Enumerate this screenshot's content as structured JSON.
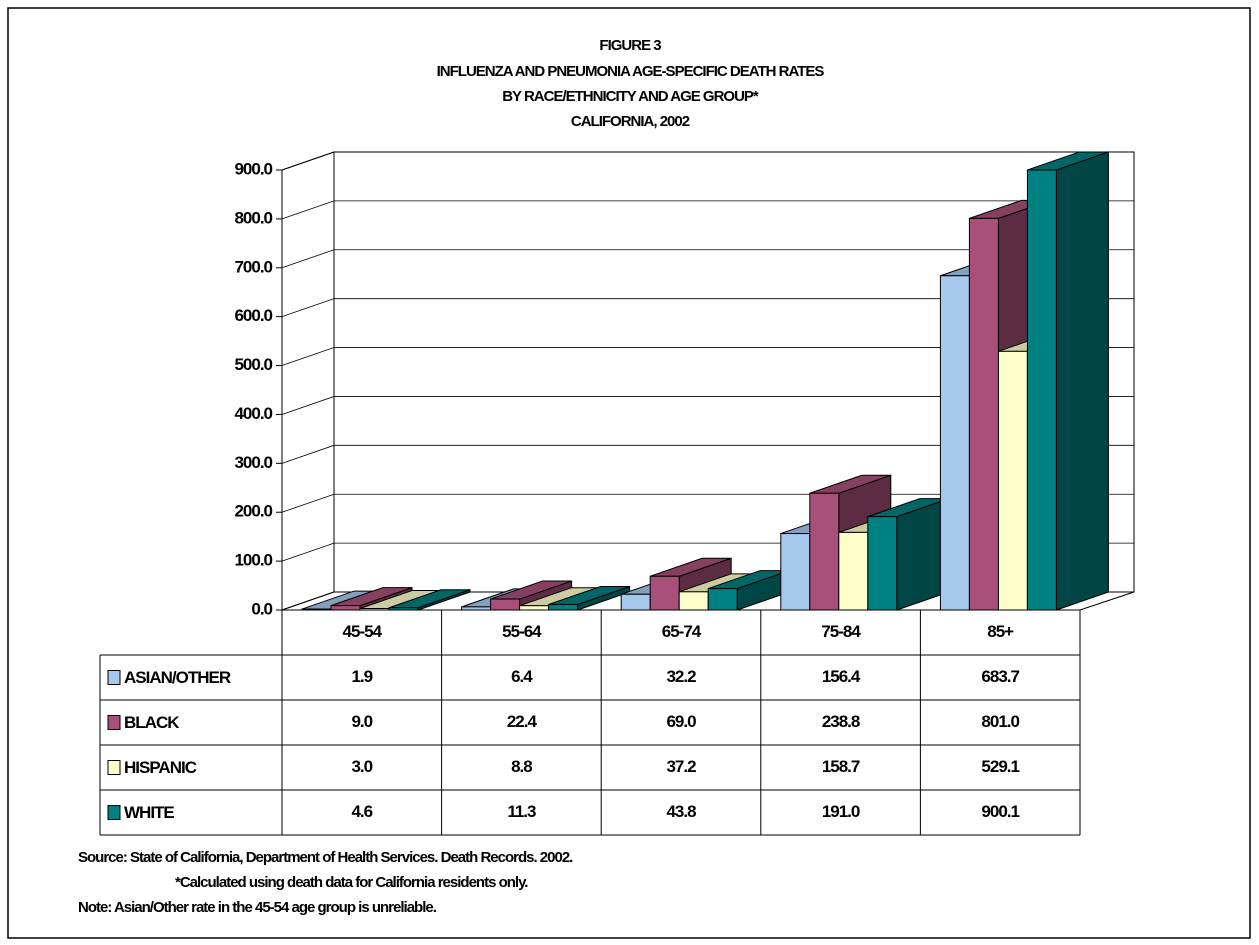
{
  "chart_data": {
    "type": "bar",
    "title": [
      "FIGURE 3",
      "INFLUENZA AND PNEUMONIA AGE-SPECIFIC DEATH RATES",
      "BY RACE/ETHNICITY AND AGE GROUP*",
      "CALIFORNIA, 2002"
    ],
    "categories": [
      "45-54",
      "55-64",
      "65-74",
      "75-84",
      "85+"
    ],
    "series": [
      {
        "name": "ASIAN/OTHER",
        "color": "#a6c8ec",
        "values": [
          1.9,
          6.4,
          32.2,
          156.4,
          683.7
        ],
        "value_labels": [
          "1.9",
          "6.4",
          "32.2",
          "156.4",
          "683.7"
        ]
      },
      {
        "name": "BLACK",
        "color": "#a8507a",
        "values": [
          9.0,
          22.4,
          69.0,
          238.8,
          801.0
        ],
        "value_labels": [
          "9.0",
          "22.4",
          "69.0",
          "238.8",
          "801.0"
        ]
      },
      {
        "name": "HISPANIC",
        "color": "#ffffcc",
        "values": [
          3.0,
          8.8,
          37.2,
          158.7,
          529.1
        ],
        "value_labels": [
          "3.0",
          "8.8",
          "37.2",
          "158.7",
          "529.1"
        ]
      },
      {
        "name": "WHITE",
        "color": "#008080",
        "values": [
          4.6,
          11.3,
          43.8,
          191.0,
          900.1
        ],
        "value_labels": [
          "4.6",
          "11.3",
          "43.8",
          "191.0",
          "900.1"
        ]
      }
    ],
    "ylim": [
      0,
      900
    ],
    "yticks": [
      {
        "value": 0,
        "label": "0.0"
      },
      {
        "value": 100,
        "label": "100.0"
      },
      {
        "value": 200,
        "label": "200.0"
      },
      {
        "value": 300,
        "label": "300.0"
      },
      {
        "value": 400,
        "label": "400.0"
      },
      {
        "value": 500,
        "label": "500.0"
      },
      {
        "value": 600,
        "label": "600.0"
      },
      {
        "value": 700,
        "label": "700.0"
      },
      {
        "value": 800,
        "label": "800.0"
      },
      {
        "value": 900,
        "label": "900.0"
      }
    ],
    "grid": true,
    "notes": [
      "Source:  State of California, Department of Health Services.  Death Records.  2002.",
      "*Calculated using death data for California residents only.",
      "Note:      Asian/Other rate in the 45-54 age group is unreliable."
    ]
  }
}
